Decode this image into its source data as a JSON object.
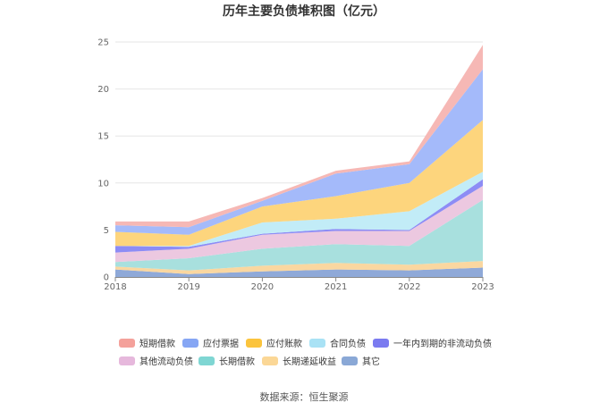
{
  "chart_data": {
    "type": "area",
    "stacked": true,
    "title": "历年主要负债堆积图（亿元）",
    "categories": [
      "2018",
      "2019",
      "2020",
      "2021",
      "2022",
      "2023"
    ],
    "ylim": [
      0,
      25
    ],
    "yticks": [
      "0",
      "5",
      "10",
      "15",
      "20",
      "25"
    ],
    "grid": true,
    "legend_position": "bottom",
    "series": [
      {
        "name": "其它",
        "color": "#8fa9d8",
        "values": [
          0.8,
          0.3,
          0.6,
          0.8,
          0.7,
          1.0
        ]
      },
      {
        "name": "长期递延收益",
        "color": "#fad7a0",
        "values": [
          0.3,
          0.4,
          0.6,
          0.7,
          0.6,
          0.7
        ]
      },
      {
        "name": "长期借款",
        "color": "#a8e0de",
        "values": [
          0.5,
          1.3,
          1.8,
          2.0,
          2.0,
          6.5
        ]
      },
      {
        "name": "其他流动负债",
        "color": "#ecc8e0",
        "values": [
          1.0,
          1.0,
          1.5,
          1.4,
          1.6,
          1.5
        ]
      },
      {
        "name": "一年内到期的非流动负债",
        "color": "#8d8cf5",
        "values": [
          0.7,
          0.2,
          0.1,
          0.2,
          0.1,
          0.7
        ]
      },
      {
        "name": "合同负债",
        "color": "#c2ecf7",
        "values": [
          0.0,
          0.1,
          1.2,
          1.1,
          2.0,
          0.8
        ]
      },
      {
        "name": "应付账款",
        "color": "#fdd57d",
        "values": [
          1.5,
          1.2,
          1.7,
          2.4,
          3.0,
          5.5
        ]
      },
      {
        "name": "应付票据",
        "color": "#a4bafa",
        "values": [
          0.7,
          0.8,
          0.6,
          2.4,
          2.0,
          5.4
        ]
      },
      {
        "name": "短期借款",
        "color": "#f6b8b5",
        "values": [
          0.4,
          0.6,
          0.3,
          0.3,
          0.3,
          2.6
        ]
      }
    ]
  },
  "legend_items": [
    {
      "name": "短期借款",
      "color": "#f4a19b"
    },
    {
      "name": "应付票据",
      "color": "#86a6f4"
    },
    {
      "name": "应付账款",
      "color": "#fbc43d"
    },
    {
      "name": "合同负债",
      "color": "#a9e2f5"
    },
    {
      "name": "一年内到期的非流动负债",
      "color": "#7b7bf0"
    },
    {
      "name": "其他流动负债",
      "color": "#e6b8dc"
    },
    {
      "name": "长期借款",
      "color": "#7fd6d3"
    },
    {
      "name": "长期递延收益",
      "color": "#fbd796"
    },
    {
      "name": "其它",
      "color": "#8aa8d6"
    }
  ],
  "source_text": "数据来源：恒生聚源"
}
